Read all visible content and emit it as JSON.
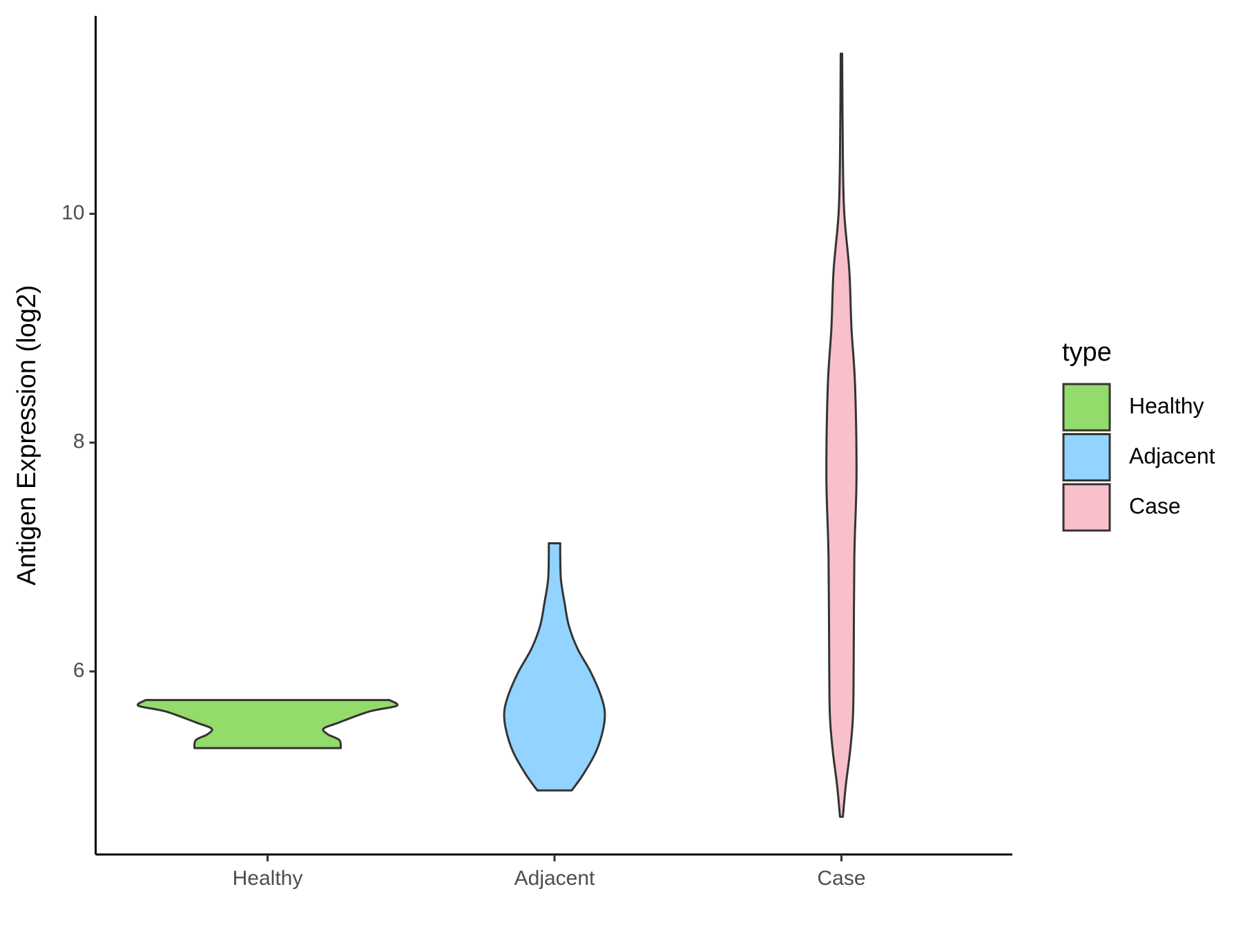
{
  "chart_data": {
    "type": "violin",
    "y_label": "Antigen Expression (log2)",
    "legend_title": "type",
    "categories": [
      "Healthy",
      "Adjacent",
      "Case"
    ],
    "series": [
      {
        "name": "Healthy",
        "color": "#93DB6A",
        "y": [
          5.33,
          5.4,
          5.45,
          5.5,
          5.55,
          5.65,
          5.7,
          5.75
        ],
        "widths": [
          0.51,
          0.5,
          0.42,
          0.39,
          0.49,
          0.71,
          0.9,
          0.85
        ]
      },
      {
        "name": "Adjacent",
        "color": "#92D3FF",
        "y": [
          4.96,
          5.1,
          5.3,
          5.5,
          5.65,
          5.8,
          6.0,
          6.2,
          6.4,
          6.6,
          6.8,
          7.0,
          7.12
        ],
        "widths": [
          0.12,
          0.2,
          0.29,
          0.34,
          0.35,
          0.32,
          0.25,
          0.16,
          0.1,
          0.07,
          0.045,
          0.04,
          0.04
        ]
      },
      {
        "name": "Case",
        "color": "#F7C0CA",
        "y": [
          4.73,
          5.0,
          5.3,
          5.6,
          6.0,
          7.0,
          7.7,
          8.5,
          9.0,
          9.5,
          10.0,
          10.5,
          11.4
        ],
        "widths": [
          0.01,
          0.03,
          0.06,
          0.08,
          0.085,
          0.09,
          0.105,
          0.095,
          0.07,
          0.055,
          0.02,
          0.01,
          0.005
        ]
      }
    ],
    "ylim": [
      4.4,
      11.73
    ],
    "yticks": [
      6,
      8,
      10
    ]
  }
}
